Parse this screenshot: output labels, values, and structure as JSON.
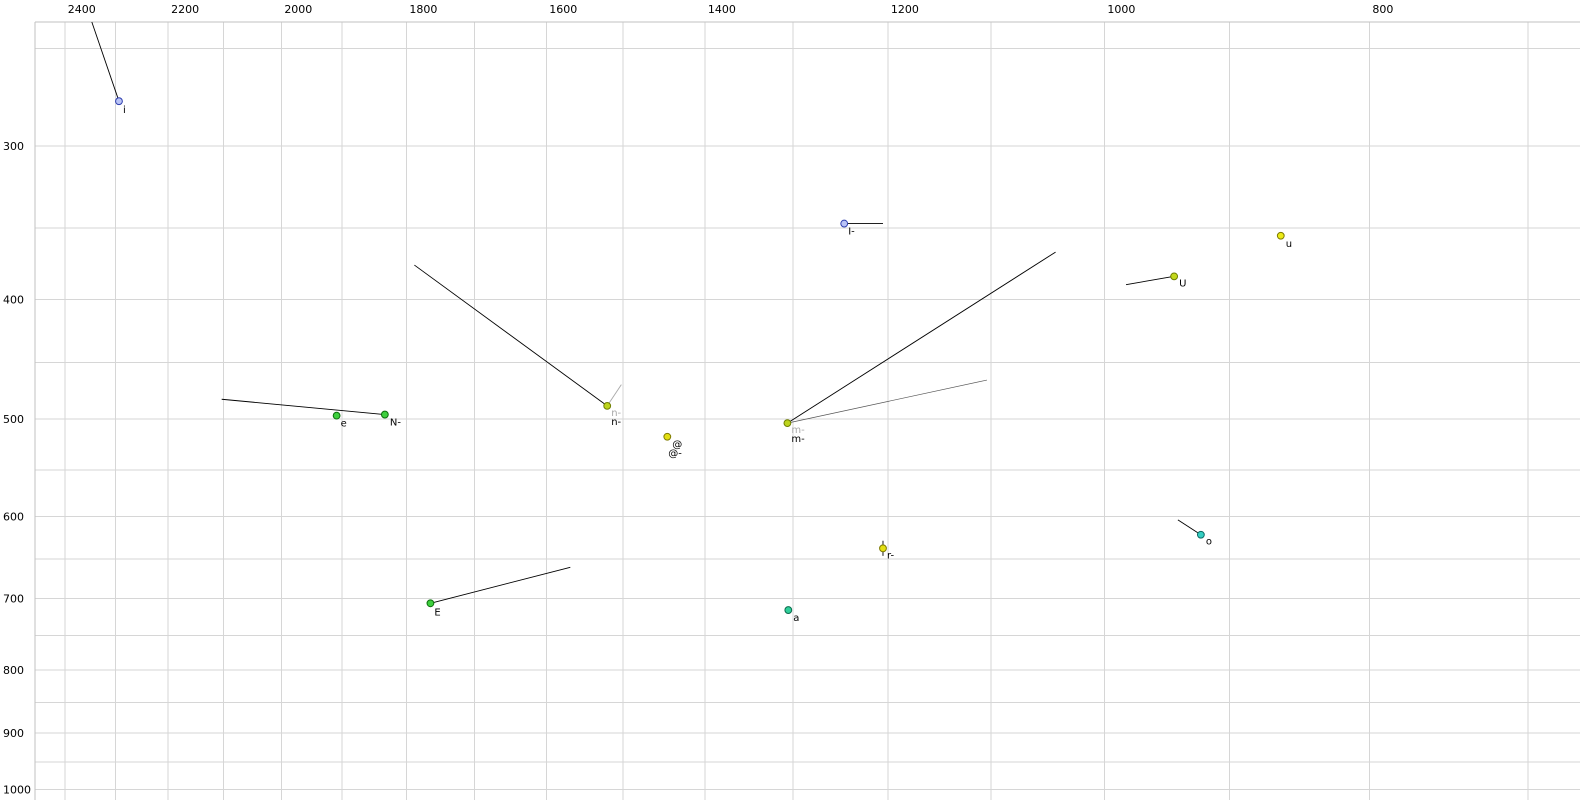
{
  "chart_data": {
    "type": "scatter",
    "description": "Vowel formant plot (F2 horizontal, reversed log scale; F1 vertical, log scale increasing downward)",
    "x_axis": {
      "position": "top",
      "scale": "log",
      "range": [
        2461,
        670
      ],
      "tick_labels": [
        2400,
        2200,
        2000,
        1800,
        1600,
        1400,
        1200,
        1000,
        800
      ],
      "gridlines": [
        2400,
        2300,
        2200,
        2100,
        2000,
        1900,
        1800,
        1700,
        1600,
        1500,
        1400,
        1300,
        1200,
        1100,
        1000,
        900,
        800,
        700
      ]
    },
    "y_axis": {
      "position": "left",
      "scale": "log",
      "range": [
        238,
        1020
      ],
      "tick_labels": [
        300,
        400,
        500,
        600,
        700,
        800,
        900,
        1000
      ],
      "gridlines": [
        250,
        300,
        350,
        400,
        450,
        500,
        550,
        600,
        650,
        700,
        750,
        800,
        850,
        900,
        950,
        1000
      ]
    },
    "style": {
      "grid_color": "#d6d6d6",
      "border_color": "#c2c2c2",
      "trail_color": "#000000",
      "label_color": "#000000",
      "background": "#ffffff"
    },
    "points": [
      {
        "label": "i",
        "f2": 2293,
        "f1": 276,
        "fill": "#b9c3f6",
        "stroke": "#2f3fae",
        "label_offset": [
          4,
          12
        ],
        "trails": [
          {
            "f2": 2346,
            "f1": 238
          }
        ]
      },
      {
        "label": "e",
        "f2": 1909,
        "f1": 497,
        "fill": "#3dcf3d",
        "stroke": "#0c6e0c",
        "label_offset": [
          4,
          11
        ]
      },
      {
        "label": "N-",
        "f2": 1833,
        "f1": 496,
        "fill": "#3dcf3d",
        "stroke": "#0c6e0c",
        "label_offset": [
          5,
          11
        ],
        "trails": [
          {
            "f2": 2103,
            "f1": 482
          }
        ]
      },
      {
        "label": "n-",
        "f2": 1520,
        "f1": 488,
        "fill": "#bdd41d",
        "stroke": "#6f7f00",
        "label_offset": [
          4,
          19
        ],
        "label2": {
          "text": "n-",
          "color": "#a8a8a8",
          "offset": [
            4,
            10
          ]
        },
        "trails": [
          {
            "f2": 1788,
            "f1": 375
          },
          {
            "f2": 1502,
            "f1": 469,
            "color": "#a8a8a8"
          }
        ]
      },
      {
        "label": "@",
        "f2": 1445,
        "f1": 517,
        "fill": "#e3df12",
        "stroke": "#7f7b00",
        "label_offset": [
          5,
          11
        ]
      },
      {
        "label": "@-",
        "f2": 1445,
        "f1": 517,
        "dot": false,
        "label_offset": [
          1,
          20
        ]
      },
      {
        "label": "m-",
        "f2": 1306,
        "f1": 504,
        "fill": "#bdd41d",
        "stroke": "#6f7f00",
        "label_offset": [
          4,
          19
        ],
        "label2": {
          "text": "m-",
          "color": "#a8a8a8",
          "offset": [
            4,
            10
          ]
        },
        "trails": [
          {
            "f2": 1042,
            "f1": 366
          },
          {
            "f2": 1104,
            "f1": 465,
            "color": "#555555",
            "width": 0.7
          }
        ]
      },
      {
        "label": "I-",
        "f2": 1245,
        "f1": 347,
        "fill": "#b9c3f6",
        "stroke": "#2f3fae",
        "label_offset": [
          4,
          11
        ],
        "trails": [
          {
            "f2": 1205,
            "f1": 347
          }
        ]
      },
      {
        "label": "u",
        "f2": 862,
        "f1": 355,
        "fill": "#eceb16",
        "stroke": "#7f7b00",
        "label_offset": [
          5,
          11
        ]
      },
      {
        "label": "U",
        "f2": 943,
        "f1": 383,
        "fill": "#c3d81c",
        "stroke": "#6f7f00",
        "label_offset": [
          5,
          10
        ],
        "trails": [
          {
            "f2": 982,
            "f1": 389
          }
        ]
      },
      {
        "label": "o",
        "f2": 922,
        "f1": 621,
        "fill": "#35cfc3",
        "stroke": "#0b6b65",
        "label_offset": [
          5,
          10
        ],
        "trails": [
          {
            "f2": 940,
            "f1": 604
          }
        ]
      },
      {
        "label": "r-",
        "f2": 1205,
        "f1": 637,
        "fill": "#e3df12",
        "stroke": "#7f7b00",
        "label_offset": [
          4,
          10
        ],
        "trails": [
          {
            "f2": 1205,
            "f1": 628
          },
          {
            "f2": 1205,
            "f1": 646
          }
        ]
      },
      {
        "label": "a",
        "f2": 1305,
        "f1": 715,
        "fill": "#2fcf9a",
        "stroke": "#0b6b4d",
        "label_offset": [
          5,
          11
        ]
      },
      {
        "label": "E",
        "f2": 1764,
        "f1": 706,
        "fill": "#3dcf3d",
        "stroke": "#0c6e0c",
        "label_offset": [
          4,
          12
        ],
        "trails": [
          {
            "f2": 1568,
            "f1": 660
          }
        ]
      }
    ]
  }
}
